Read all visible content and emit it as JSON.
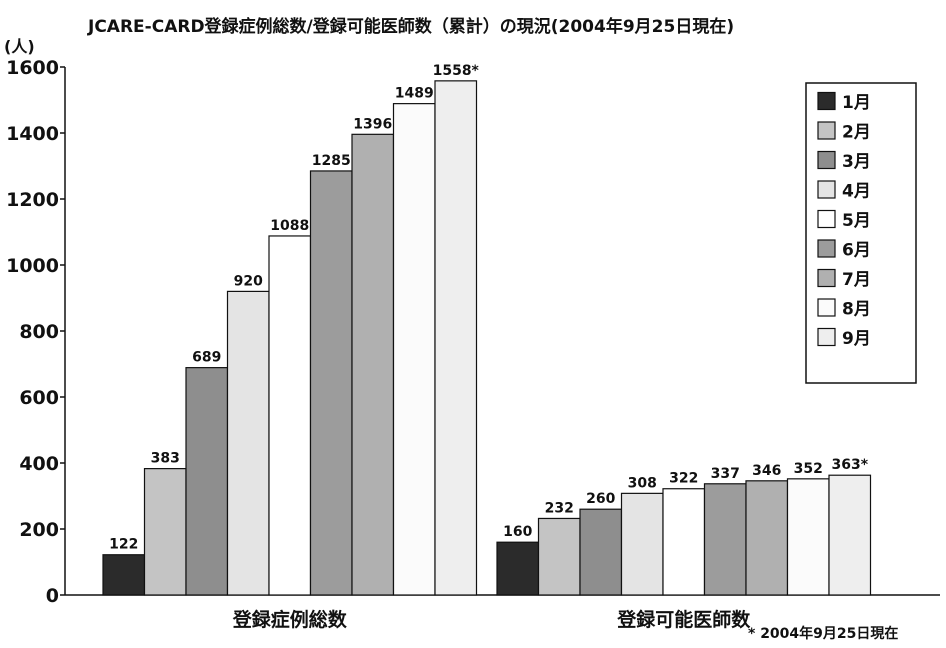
{
  "chart_data": {
    "type": "bar",
    "title": "JCARE-CARD登録症例総数/登録可能医師数（累計）の現況(2004年9月25日現在)",
    "unit_label": "(人)",
    "xlabel": "",
    "ylabel": "",
    "ylim": [
      0,
      1600
    ],
    "yticks": [
      0,
      200,
      400,
      600,
      800,
      1000,
      1200,
      1400,
      1600
    ],
    "grid": false,
    "legend_position": "top-right",
    "categories": [
      "登録症例総数",
      "登録可能医師数"
    ],
    "series": [
      {
        "name": "1月",
        "color": "#2b2b2b",
        "values": [
          122,
          160
        ],
        "labels": [
          "122",
          "160"
        ]
      },
      {
        "name": "2月",
        "color": "#c4c4c4",
        "values": [
          383,
          232
        ],
        "labels": [
          "383",
          "232"
        ]
      },
      {
        "name": "3月",
        "color": "#8e8e8e",
        "values": [
          689,
          260
        ],
        "labels": [
          "689",
          "260"
        ]
      },
      {
        "name": "4月",
        "color": "#e4e4e4",
        "values": [
          920,
          308
        ],
        "labels": [
          "920",
          "308"
        ]
      },
      {
        "name": "5月",
        "color": "#ffffff",
        "values": [
          1088,
          322
        ],
        "labels": [
          "1088",
          "322"
        ]
      },
      {
        "name": "6月",
        "color": "#9c9c9c",
        "values": [
          1285,
          337
        ],
        "labels": [
          "1285",
          "337"
        ]
      },
      {
        "name": "7月",
        "color": "#b0b0b0",
        "values": [
          1396,
          346
        ],
        "labels": [
          "1396",
          "346"
        ]
      },
      {
        "name": "8月",
        "color": "#fbfbfb",
        "values": [
          1489,
          352
        ],
        "labels": [
          "1489",
          "352"
        ]
      },
      {
        "name": "9月",
        "color": "#eeeeee",
        "values": [
          1558,
          363
        ],
        "labels": [
          "1558*",
          "363*"
        ]
      }
    ],
    "footnote": "* 2004年9月25日現在"
  }
}
